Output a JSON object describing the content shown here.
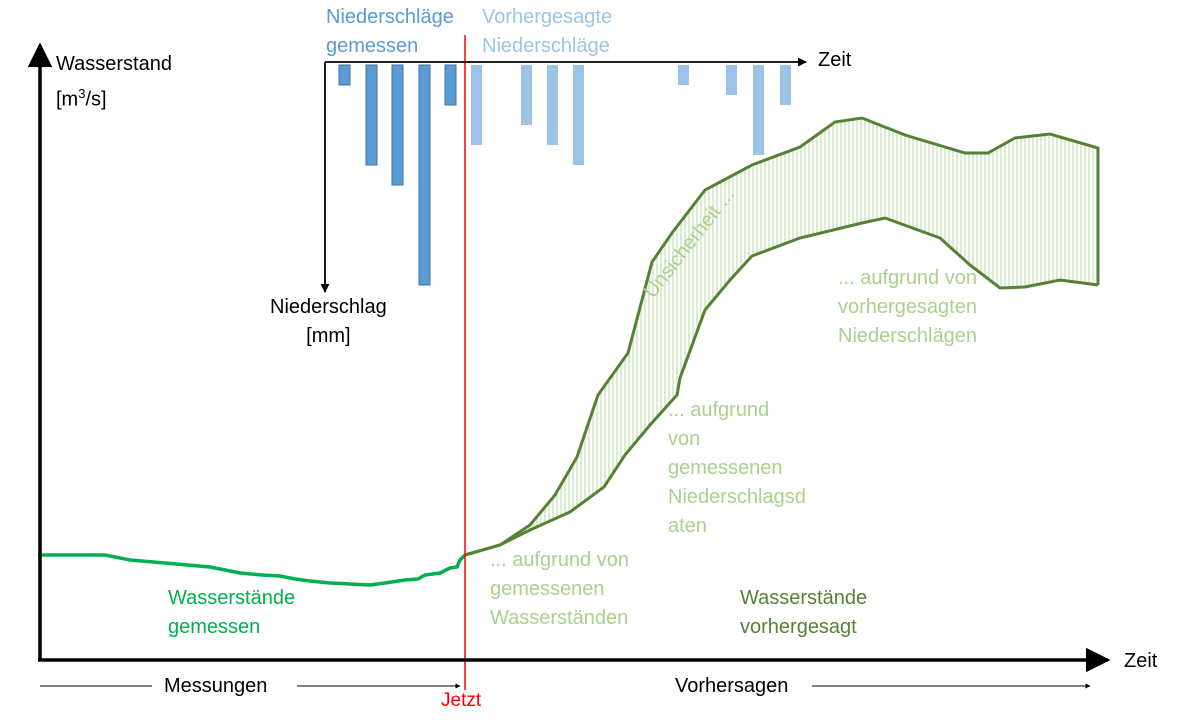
{
  "colors": {
    "axis": "#000000",
    "precip_measured": "#5b9bd5",
    "precip_forecast": "#9dc3e6",
    "level_measured": "#00b050",
    "level_forecast": "#548235",
    "uncertainty_text": "#a9d18e",
    "now_line": "#ff0000"
  },
  "axes": {
    "y_label_line1": "Wasserstand",
    "y_label_line2_base": "[m",
    "y_label_line2_sup": "3",
    "y_label_line2_tail": "/s]",
    "x_label": "Zeit",
    "precip_time_label": "Zeit",
    "precip_label_line1": "Niederschlag",
    "precip_label_line2": "[mm]"
  },
  "legend": {
    "measured_precip_line1": "Niederschläge",
    "measured_precip_line2": "gemessen",
    "forecast_precip_line1": "Vorhergesagte",
    "forecast_precip_line2": "Niederschläge"
  },
  "labels": {
    "level_measured_line1": "Wasserstände",
    "level_measured_line2": "gemessen",
    "level_forecast_line1": "Wasserstände",
    "level_forecast_line2": "vorhergesagt",
    "uncertainty": "Unsicherheit ...",
    "due_to_water_levels": [
      "... aufgrund von",
      "gemessenen",
      "Wasserständen"
    ],
    "due_to_measured_precip": [
      "... aufgrund",
      "von",
      "gemessenen",
      "Niederschlagsd",
      "aten"
    ],
    "due_to_forecast_precip": [
      "... aufgrund von",
      "vorhergesagten",
      "Niederschlägen"
    ]
  },
  "timeline": {
    "past": "Messungen",
    "now": "Jetzt",
    "future": "Vorhersagen"
  },
  "precip_bars": {
    "measured": [
      1,
      5,
      6,
      11,
      2
    ],
    "forecast": [
      4,
      3,
      4,
      5,
      1,
      1.5,
      4.5,
      2
    ]
  }
}
